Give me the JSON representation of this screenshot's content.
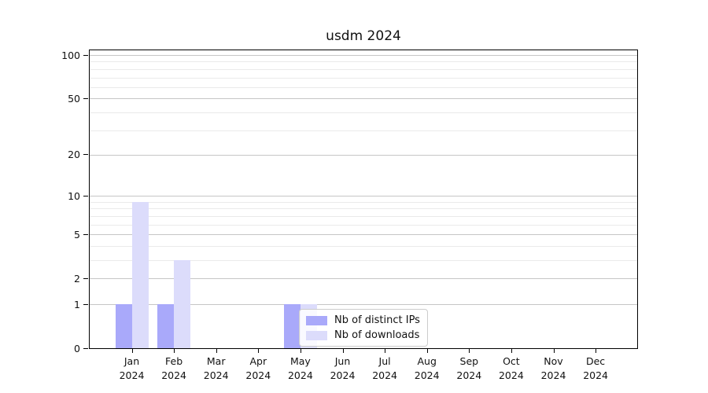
{
  "title": "usdm 2024",
  "legend": {
    "items": [
      {
        "label": "Nb of distinct IPs",
        "color": "#a9a9fa"
      },
      {
        "label": "Nb of downloads",
        "color": "#dcdcfb"
      }
    ]
  },
  "colors": {
    "bar_distinct_ips": "#a9a9fa",
    "bar_downloads": "#dcdcfb",
    "grid_major": "#c6c6c6",
    "grid_minor": "#eaeaea",
    "axis": "#000000",
    "background": "#ffffff"
  },
  "chart_data": {
    "type": "bar",
    "title": "usdm 2024",
    "categories": [
      "Jan 2024",
      "Feb 2024",
      "Mar 2024",
      "Apr 2024",
      "May 2024",
      "Jun 2024",
      "Jul 2024",
      "Aug 2024",
      "Sep 2024",
      "Oct 2024",
      "Nov 2024",
      "Dec 2024"
    ],
    "x_tick_months": [
      "Jan",
      "Feb",
      "Mar",
      "Apr",
      "May",
      "Jun",
      "Jul",
      "Aug",
      "Sep",
      "Oct",
      "Nov",
      "Dec"
    ],
    "x_tick_year": "2024",
    "series": [
      {
        "name": "Nb of distinct IPs",
        "color": "#a9a9fa",
        "values": [
          1,
          1,
          0,
          0,
          1,
          0,
          0,
          0,
          0,
          0,
          0,
          0
        ]
      },
      {
        "name": "Nb of downloads",
        "color": "#dcdcfb",
        "values": [
          9,
          3,
          0,
          0,
          1,
          0,
          0,
          0,
          0,
          0,
          0,
          0
        ]
      }
    ],
    "xlabel": "",
    "ylabel": "",
    "yscale": "log10(1+x)",
    "ylim": [
      0,
      108
    ],
    "y_ticks": [
      0,
      1,
      2,
      5,
      10,
      20,
      50,
      100
    ],
    "y_minor_ticks": [
      3,
      4,
      6,
      7,
      8,
      9,
      30,
      40,
      60,
      70,
      80,
      90
    ],
    "grid": true,
    "legend_position": "inside lower-center"
  }
}
